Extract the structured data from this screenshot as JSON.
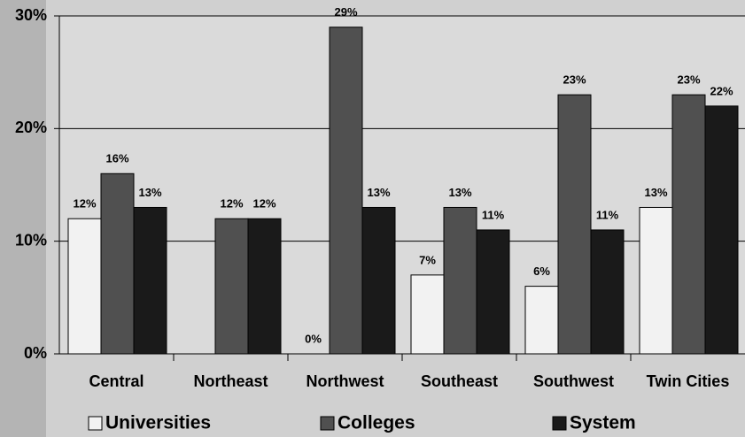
{
  "chart_data": {
    "type": "bar",
    "categories": [
      "Central",
      "Northeast",
      "Northwest",
      "Southeast",
      "Southwest",
      "Twin Cities"
    ],
    "series": [
      {
        "name": "Universities",
        "color": "#f2f2f2",
        "values": [
          12,
          null,
          0,
          7,
          6,
          13
        ],
        "value_labels": [
          "12%",
          null,
          "0%",
          "7%",
          "6%",
          "13%"
        ]
      },
      {
        "name": "Colleges",
        "color": "#505050",
        "values": [
          16,
          12,
          29,
          13,
          23,
          23
        ],
        "value_labels": [
          "16%",
          "12%",
          "29%",
          "13%",
          "23%",
          "23%"
        ]
      },
      {
        "name": "System",
        "color": "#1a1a1a",
        "values": [
          13,
          12,
          13,
          11,
          11,
          22
        ],
        "value_labels": [
          "13%",
          "12%",
          "13%",
          "11%",
          "11%",
          "22%"
        ]
      }
    ],
    "ylim": [
      0,
      30
    ],
    "yticks": [
      {
        "value": 0,
        "label": "0%"
      },
      {
        "value": 10,
        "label": "10%"
      },
      {
        "value": 20,
        "label": "20%"
      },
      {
        "value": 30,
        "label": "30%"
      }
    ],
    "grid": true,
    "legend": "bottom"
  }
}
